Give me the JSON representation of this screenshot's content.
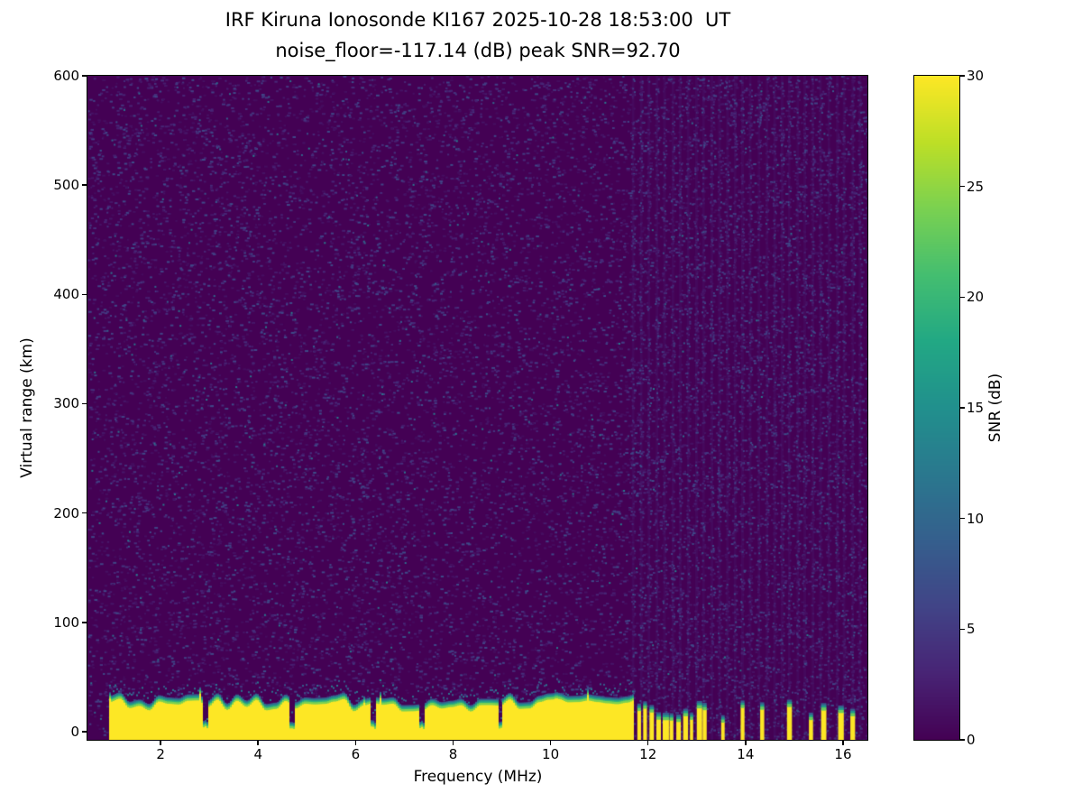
{
  "figure": {
    "background": "#ffffff",
    "text_color": "#000000"
  },
  "chart_data": {
    "type": "heatmap",
    "title": "IRF Kiruna Ionosonde KI167 2025-10-28 18:53:00  UT",
    "subtitle": "noise_floor=-117.14 (dB) peak SNR=92.70",
    "xlabel": "Frequency (MHz)",
    "ylabel": "Virtual range (km)",
    "xlim": [
      0.5,
      16.5
    ],
    "ylim": [
      -7.5,
      600
    ],
    "xticks": [
      2,
      4,
      6,
      8,
      10,
      12,
      14,
      16
    ],
    "yticks": [
      0,
      100,
      200,
      300,
      400,
      500,
      600
    ],
    "grid": false,
    "legend": "none",
    "colorbar": {
      "label": "SNR (dB)",
      "min": 0,
      "max": 30,
      "ticks": [
        0,
        5,
        10,
        15,
        20,
        25,
        30
      ],
      "colormap": "viridis"
    },
    "colormap_stops": [
      [
        0.0,
        68,
        1,
        84
      ],
      [
        0.1,
        72,
        36,
        117
      ],
      [
        0.2,
        65,
        68,
        135
      ],
      [
        0.3,
        53,
        95,
        141
      ],
      [
        0.4,
        42,
        120,
        142
      ],
      [
        0.5,
        33,
        144,
        141
      ],
      [
        0.6,
        34,
        168,
        132
      ],
      [
        0.7,
        68,
        190,
        112
      ],
      [
        0.8,
        122,
        209,
        81
      ],
      [
        0.9,
        189,
        223,
        38
      ],
      [
        1.0,
        253,
        231,
        37
      ]
    ],
    "background_value_db": 0,
    "noise": {
      "seed": 42,
      "speckle_count": 16000,
      "value_range_db": [
        1,
        7
      ],
      "bright_speckle_count": 500,
      "bright_value_range_db": [
        6,
        13
      ]
    },
    "ground_clutter": {
      "freq_start_mhz": 0.95,
      "freq_end_mhz": 11.68,
      "top_km_mean": 30,
      "top_km_variation": 12,
      "gradient_thickness_km": 9,
      "saturated_value_db": 30,
      "notch_freqs_mhz": [
        2.9,
        4.68,
        6.35,
        7.35,
        8.95
      ]
    },
    "rf_stripes": {
      "freqs_mhz": [
        11.78,
        11.9,
        12.03,
        12.17,
        12.3,
        12.44,
        12.58,
        12.72,
        12.86,
        13.0,
        13.12,
        13.5,
        13.9,
        14.3,
        14.85,
        15.3,
        15.55,
        15.9,
        16.15
      ],
      "top_km_range": [
        14,
        30
      ],
      "saturated_value_db": 30
    },
    "noise_columns": {
      "freq_range_mhz": [
        11.7,
        16.45
      ],
      "spacing_mhz": 0.16,
      "value_db": 1.5
    }
  }
}
